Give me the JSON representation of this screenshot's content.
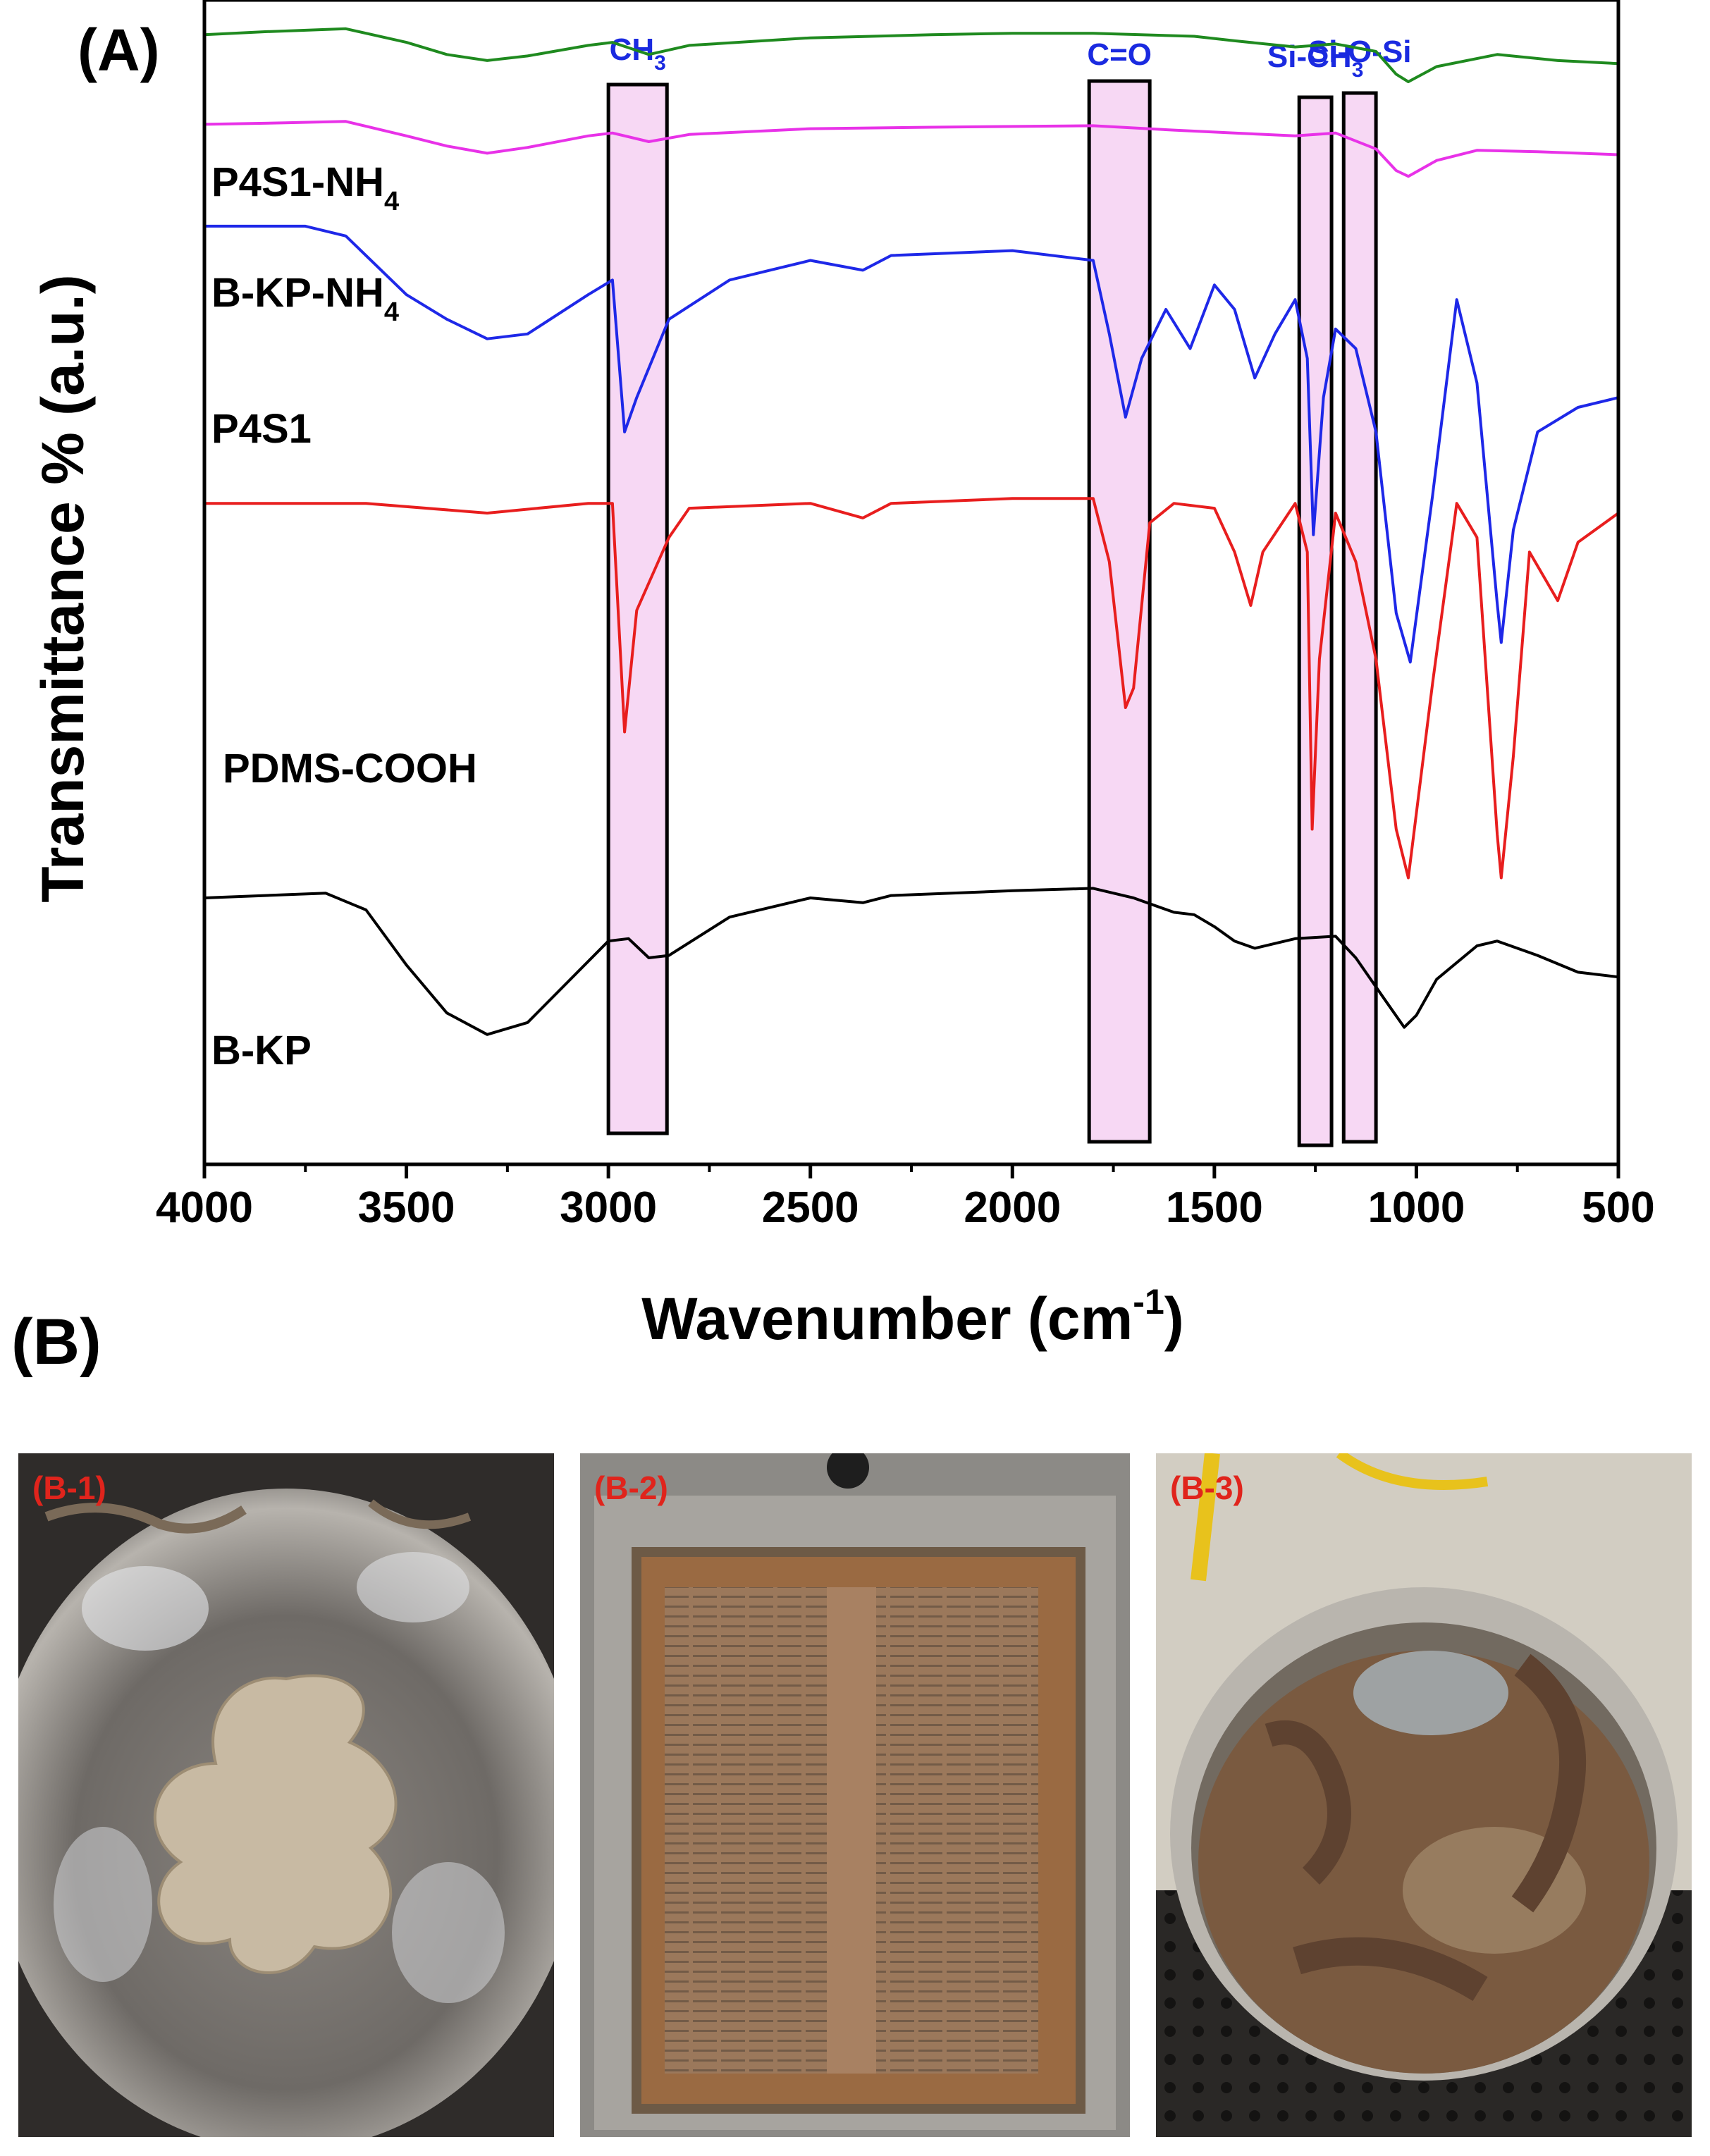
{
  "panel_a_label": "(A)",
  "panel_b_label": "(B)",
  "chart_data": {
    "type": "line",
    "xlabel": "Wavenumber (cm",
    "xlabel_sup": "-1",
    "xlabel_close": ")",
    "ylabel": "Transmittance % (a.u.)",
    "xlim": [
      4000,
      500
    ],
    "x_reversed": true,
    "xticks": [
      4000,
      3500,
      3000,
      2500,
      2000,
      1500,
      1000,
      500
    ],
    "y_ticks_shown": false,
    "grid": false,
    "highlight_bands": [
      {
        "label": "CH",
        "sub": "3",
        "x_from": 3000,
        "x_to": 2855
      },
      {
        "label": "C=O",
        "sub": "",
        "x_from": 1810,
        "x_to": 1660
      },
      {
        "label": "Si-CH",
        "sub": "3",
        "x_from": 1290,
        "x_to": 1210
      },
      {
        "label": "Si-O-Si",
        "sub": "",
        "x_from": 1180,
        "x_to": 1100
      }
    ],
    "series": [
      {
        "name": "P4S1-NH",
        "sub": "4",
        "color": "#1f8a1f",
        "points": [
          [
            4000,
            0.91
          ],
          [
            3850,
            0.93
          ],
          [
            3650,
            0.95
          ],
          [
            3500,
            0.86
          ],
          [
            3400,
            0.78
          ],
          [
            3300,
            0.74
          ],
          [
            3200,
            0.77
          ],
          [
            3050,
            0.84
          ],
          [
            2990,
            0.86
          ],
          [
            2900,
            0.78
          ],
          [
            2800,
            0.84
          ],
          [
            2500,
            0.89
          ],
          [
            2200,
            0.91
          ],
          [
            2000,
            0.92
          ],
          [
            1800,
            0.92
          ],
          [
            1550,
            0.9
          ],
          [
            1450,
            0.87
          ],
          [
            1300,
            0.83
          ],
          [
            1200,
            0.85
          ],
          [
            1100,
            0.8
          ],
          [
            1050,
            0.65
          ],
          [
            1020,
            0.6
          ],
          [
            950,
            0.7
          ],
          [
            800,
            0.78
          ],
          [
            650,
            0.74
          ],
          [
            500,
            0.72
          ]
        ]
      },
      {
        "name": "B-KP-NH",
        "sub": "4",
        "color": "#e832e8",
        "points": [
          [
            4000,
            0.92
          ],
          [
            3800,
            0.93
          ],
          [
            3650,
            0.94
          ],
          [
            3500,
            0.84
          ],
          [
            3400,
            0.77
          ],
          [
            3300,
            0.72
          ],
          [
            3200,
            0.76
          ],
          [
            3050,
            0.84
          ],
          [
            2990,
            0.86
          ],
          [
            2900,
            0.8
          ],
          [
            2800,
            0.85
          ],
          [
            2500,
            0.89
          ],
          [
            2200,
            0.9
          ],
          [
            1800,
            0.91
          ],
          [
            1600,
            0.88
          ],
          [
            1450,
            0.86
          ],
          [
            1300,
            0.84
          ],
          [
            1200,
            0.86
          ],
          [
            1100,
            0.75
          ],
          [
            1050,
            0.6
          ],
          [
            1020,
            0.56
          ],
          [
            950,
            0.67
          ],
          [
            850,
            0.74
          ],
          [
            700,
            0.73
          ],
          [
            500,
            0.71
          ]
        ]
      },
      {
        "name": "P4S1",
        "sub": "",
        "color": "#1e28e8",
        "points": [
          [
            4000,
            0.97
          ],
          [
            3750,
            0.97
          ],
          [
            3650,
            0.95
          ],
          [
            3500,
            0.83
          ],
          [
            3400,
            0.78
          ],
          [
            3300,
            0.74
          ],
          [
            3200,
            0.75
          ],
          [
            3050,
            0.83
          ],
          [
            2990,
            0.86
          ],
          [
            2960,
            0.55
          ],
          [
            2930,
            0.62
          ],
          [
            2850,
            0.78
          ],
          [
            2700,
            0.86
          ],
          [
            2500,
            0.9
          ],
          [
            2370,
            0.88
          ],
          [
            2300,
            0.91
          ],
          [
            2000,
            0.92
          ],
          [
            1800,
            0.9
          ],
          [
            1760,
            0.75
          ],
          [
            1720,
            0.58
          ],
          [
            1680,
            0.7
          ],
          [
            1620,
            0.8
          ],
          [
            1560,
            0.72
          ],
          [
            1500,
            0.85
          ],
          [
            1450,
            0.8
          ],
          [
            1400,
            0.66
          ],
          [
            1350,
            0.75
          ],
          [
            1300,
            0.82
          ],
          [
            1270,
            0.7
          ],
          [
            1255,
            0.34
          ],
          [
            1230,
            0.62
          ],
          [
            1200,
            0.76
          ],
          [
            1150,
            0.72
          ],
          [
            1100,
            0.55
          ],
          [
            1050,
            0.18
          ],
          [
            1015,
            0.08
          ],
          [
            960,
            0.42
          ],
          [
            900,
            0.82
          ],
          [
            850,
            0.65
          ],
          [
            800,
            0.2
          ],
          [
            790,
            0.12
          ],
          [
            760,
            0.35
          ],
          [
            700,
            0.55
          ],
          [
            600,
            0.6
          ],
          [
            500,
            0.62
          ]
        ]
      },
      {
        "name": "PDMS-COOH",
        "sub": "",
        "color": "#e81e1e",
        "points": [
          [
            4000,
            0.82
          ],
          [
            3600,
            0.82
          ],
          [
            3300,
            0.8
          ],
          [
            3050,
            0.82
          ],
          [
            2990,
            0.82
          ],
          [
            2960,
            0.35
          ],
          [
            2930,
            0.6
          ],
          [
            2850,
            0.75
          ],
          [
            2800,
            0.81
          ],
          [
            2500,
            0.82
          ],
          [
            2370,
            0.79
          ],
          [
            2300,
            0.82
          ],
          [
            2000,
            0.83
          ],
          [
            1800,
            0.83
          ],
          [
            1760,
            0.7
          ],
          [
            1720,
            0.4
          ],
          [
            1700,
            0.44
          ],
          [
            1660,
            0.78
          ],
          [
            1600,
            0.82
          ],
          [
            1500,
            0.81
          ],
          [
            1450,
            0.72
          ],
          [
            1410,
            0.61
          ],
          [
            1380,
            0.72
          ],
          [
            1300,
            0.82
          ],
          [
            1270,
            0.72
          ],
          [
            1258,
            0.15
          ],
          [
            1240,
            0.5
          ],
          [
            1200,
            0.8
          ],
          [
            1150,
            0.7
          ],
          [
            1100,
            0.5
          ],
          [
            1050,
            0.15
          ],
          [
            1020,
            0.05
          ],
          [
            960,
            0.45
          ],
          [
            900,
            0.82
          ],
          [
            850,
            0.75
          ],
          [
            800,
            0.14
          ],
          [
            790,
            0.05
          ],
          [
            760,
            0.3
          ],
          [
            720,
            0.72
          ],
          [
            650,
            0.62
          ],
          [
            600,
            0.74
          ],
          [
            500,
            0.8
          ]
        ]
      },
      {
        "name": "B-KP",
        "sub": "",
        "color": "#000000",
        "points": [
          [
            4000,
            0.9
          ],
          [
            3850,
            0.91
          ],
          [
            3700,
            0.92
          ],
          [
            3600,
            0.85
          ],
          [
            3500,
            0.62
          ],
          [
            3400,
            0.42
          ],
          [
            3300,
            0.33
          ],
          [
            3200,
            0.38
          ],
          [
            3100,
            0.55
          ],
          [
            3000,
            0.72
          ],
          [
            2950,
            0.73
          ],
          [
            2900,
            0.65
          ],
          [
            2850,
            0.66
          ],
          [
            2700,
            0.82
          ],
          [
            2500,
            0.9
          ],
          [
            2370,
            0.88
          ],
          [
            2300,
            0.91
          ],
          [
            2000,
            0.93
          ],
          [
            1800,
            0.94
          ],
          [
            1700,
            0.9
          ],
          [
            1600,
            0.84
          ],
          [
            1550,
            0.83
          ],
          [
            1500,
            0.78
          ],
          [
            1450,
            0.72
          ],
          [
            1400,
            0.69
          ],
          [
            1300,
            0.73
          ],
          [
            1200,
            0.74
          ],
          [
            1150,
            0.65
          ],
          [
            1080,
            0.48
          ],
          [
            1030,
            0.36
          ],
          [
            1000,
            0.41
          ],
          [
            950,
            0.56
          ],
          [
            850,
            0.7
          ],
          [
            800,
            0.72
          ],
          [
            700,
            0.66
          ],
          [
            600,
            0.59
          ],
          [
            500,
            0.57
          ]
        ]
      }
    ]
  },
  "photos": [
    {
      "label": "(B-1)"
    },
    {
      "label": "(B-2)"
    },
    {
      "label": "(B-3)"
    }
  ]
}
